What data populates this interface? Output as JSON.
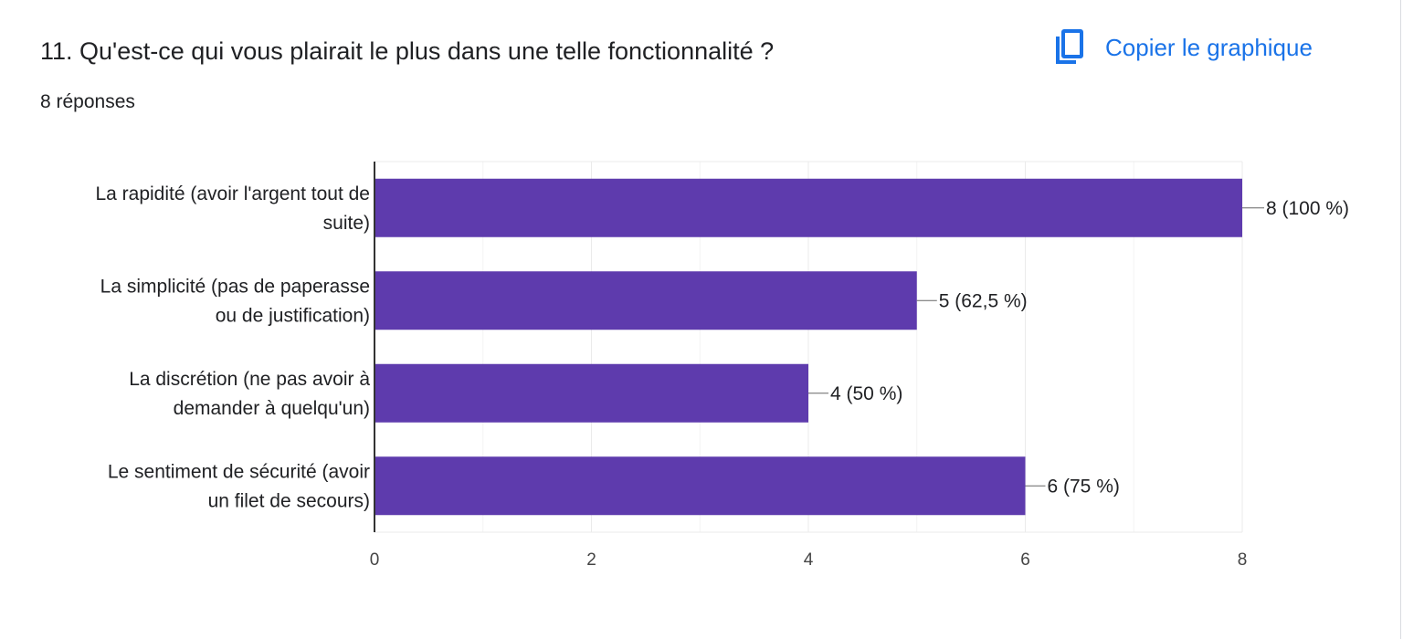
{
  "question": {
    "title": "11. Qu'est-ce qui vous plairait le plus dans une telle fonctionnalité ?",
    "responses": "8 réponses"
  },
  "toolbar": {
    "copy_label": "Copier le graphique",
    "copy_icon": "copy-icon"
  },
  "colors": {
    "bar": "#5e3bad",
    "accent": "#1a73e8",
    "grid": "#ebebeb",
    "axis": "#333333"
  },
  "chart_data": {
    "type": "bar",
    "orientation": "horizontal",
    "categories": [
      [
        "La rapidité (avoir l'argent tout de",
        "suite)"
      ],
      [
        "La simplicité (pas de paperasse",
        "ou de justification)"
      ],
      [
        "La discrétion (ne pas avoir à",
        "demander à quelqu'un)"
      ],
      [
        "Le sentiment de sécurité (avoir",
        "un filet de secours)"
      ]
    ],
    "values": [
      8,
      5,
      4,
      6
    ],
    "data_labels": [
      "8 (100 %)",
      "5 (62,5 %)",
      "4 (50 %)",
      "6 (75 %)"
    ],
    "xlim": [
      0,
      8
    ],
    "x_ticks": [
      "0",
      "2",
      "4",
      "6",
      "8"
    ],
    "grid": true
  }
}
